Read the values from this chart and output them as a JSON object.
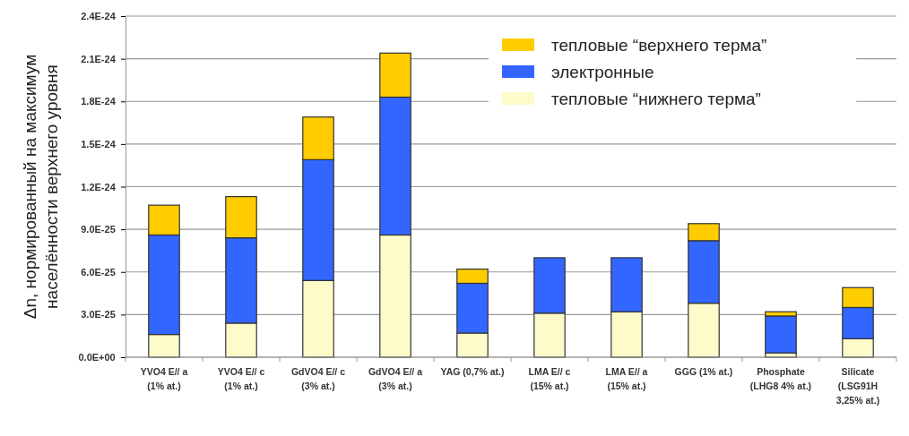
{
  "chart_data": {
    "type": "bar",
    "stacked": true,
    "ylabel": "Δn, нормированный на максимум\nнаселённости верхнего уровня",
    "categories": [
      "YVO4  E// a\n(1% at.)",
      "YVO4 E// c\n(1% at.)",
      "GdVO4  E// c\n(3% at.)",
      "GdVO4  E// a\n(3% at.)",
      "YAG (0,7% at.)",
      "LMA  E// c\n(15% at.)",
      "LMA  E// a\n(15% at.)",
      "GGG (1% at.)",
      "Phosphate\n(LHG8 4% at.)",
      "Silicate\n(LSG91H\n3,25% at.)"
    ],
    "series": [
      {
        "name": "тепловые “нижнего терма”",
        "color": "#fdfbc9",
        "values": [
          1.6e-25,
          2.4e-25,
          5.4e-25,
          8.6e-25,
          1.7e-25,
          3.1e-25,
          3.2e-25,
          3.8e-25,
          3e-26,
          1.3e-25
        ]
      },
      {
        "name": "электронные",
        "color": "#3366ff",
        "values": [
          7e-25,
          6e-25,
          8.5e-25,
          9.7e-25,
          3.5e-25,
          3.9e-25,
          3.8e-25,
          4.4e-25,
          2.6e-25,
          2.2e-25
        ]
      },
      {
        "name": "тепловые “верхнего терма”",
        "color": "#ffcc00",
        "values": [
          2.1e-25,
          2.9e-25,
          3e-25,
          3.1e-25,
          1e-25,
          0,
          0,
          1.2e-25,
          3e-26,
          1.4e-25
        ]
      }
    ],
    "ylim": [
      0,
      2.4e-24
    ],
    "yticks": [
      {
        "value": 0,
        "label": "0.0E+00"
      },
      {
        "value": 3e-25,
        "label": "3.0E-25"
      },
      {
        "value": 6e-25,
        "label": "6.0E-25"
      },
      {
        "value": 9e-25,
        "label": "9.0E-25"
      },
      {
        "value": 1.2e-24,
        "label": "1.2E-24"
      },
      {
        "value": 1.5e-24,
        "label": "1.5E-24"
      },
      {
        "value": 1.8e-24,
        "label": "1.8E-24"
      },
      {
        "value": 2.1e-24,
        "label": "2.1E-24"
      },
      {
        "value": 2.4e-24,
        "label": "2.4E-24"
      }
    ],
    "grid": "y",
    "legend": "top right"
  }
}
